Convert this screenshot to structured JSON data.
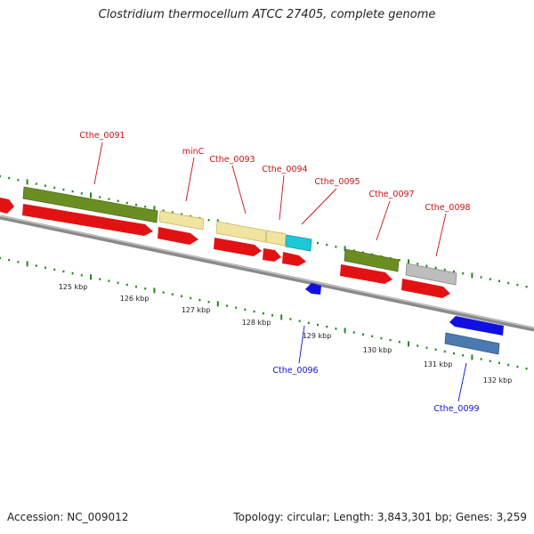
{
  "title": "Clostridium thermocellum ATCC 27405, complete genome",
  "footer": {
    "accession": "Accession: NC_009012",
    "info": "Topology: circular; Length: 3,843,301 bp; Genes: 3,259"
  },
  "colors": {
    "cds": "#ee1111",
    "label_forward": "#cc1111",
    "label_reverse": "#1111cc",
    "tick": "#1f8a1f"
  },
  "scale_labels": [
    "125 kbp",
    "126 kbp",
    "127 kbp",
    "128 kbp",
    "129 kbp",
    "130 kbp",
    "131 kbp",
    "132 kbp"
  ],
  "gene_labels": {
    "g0091": "Cthe_0091",
    "minC": "minC",
    "g0093": "Cthe_0093",
    "g0094": "Cthe_0094",
    "g0095": "Cthe_0095",
    "g0097": "Cthe_0097",
    "g0098": "Cthe_0098",
    "g0096": "Cthe_0096",
    "g0099": "Cthe_0099"
  }
}
